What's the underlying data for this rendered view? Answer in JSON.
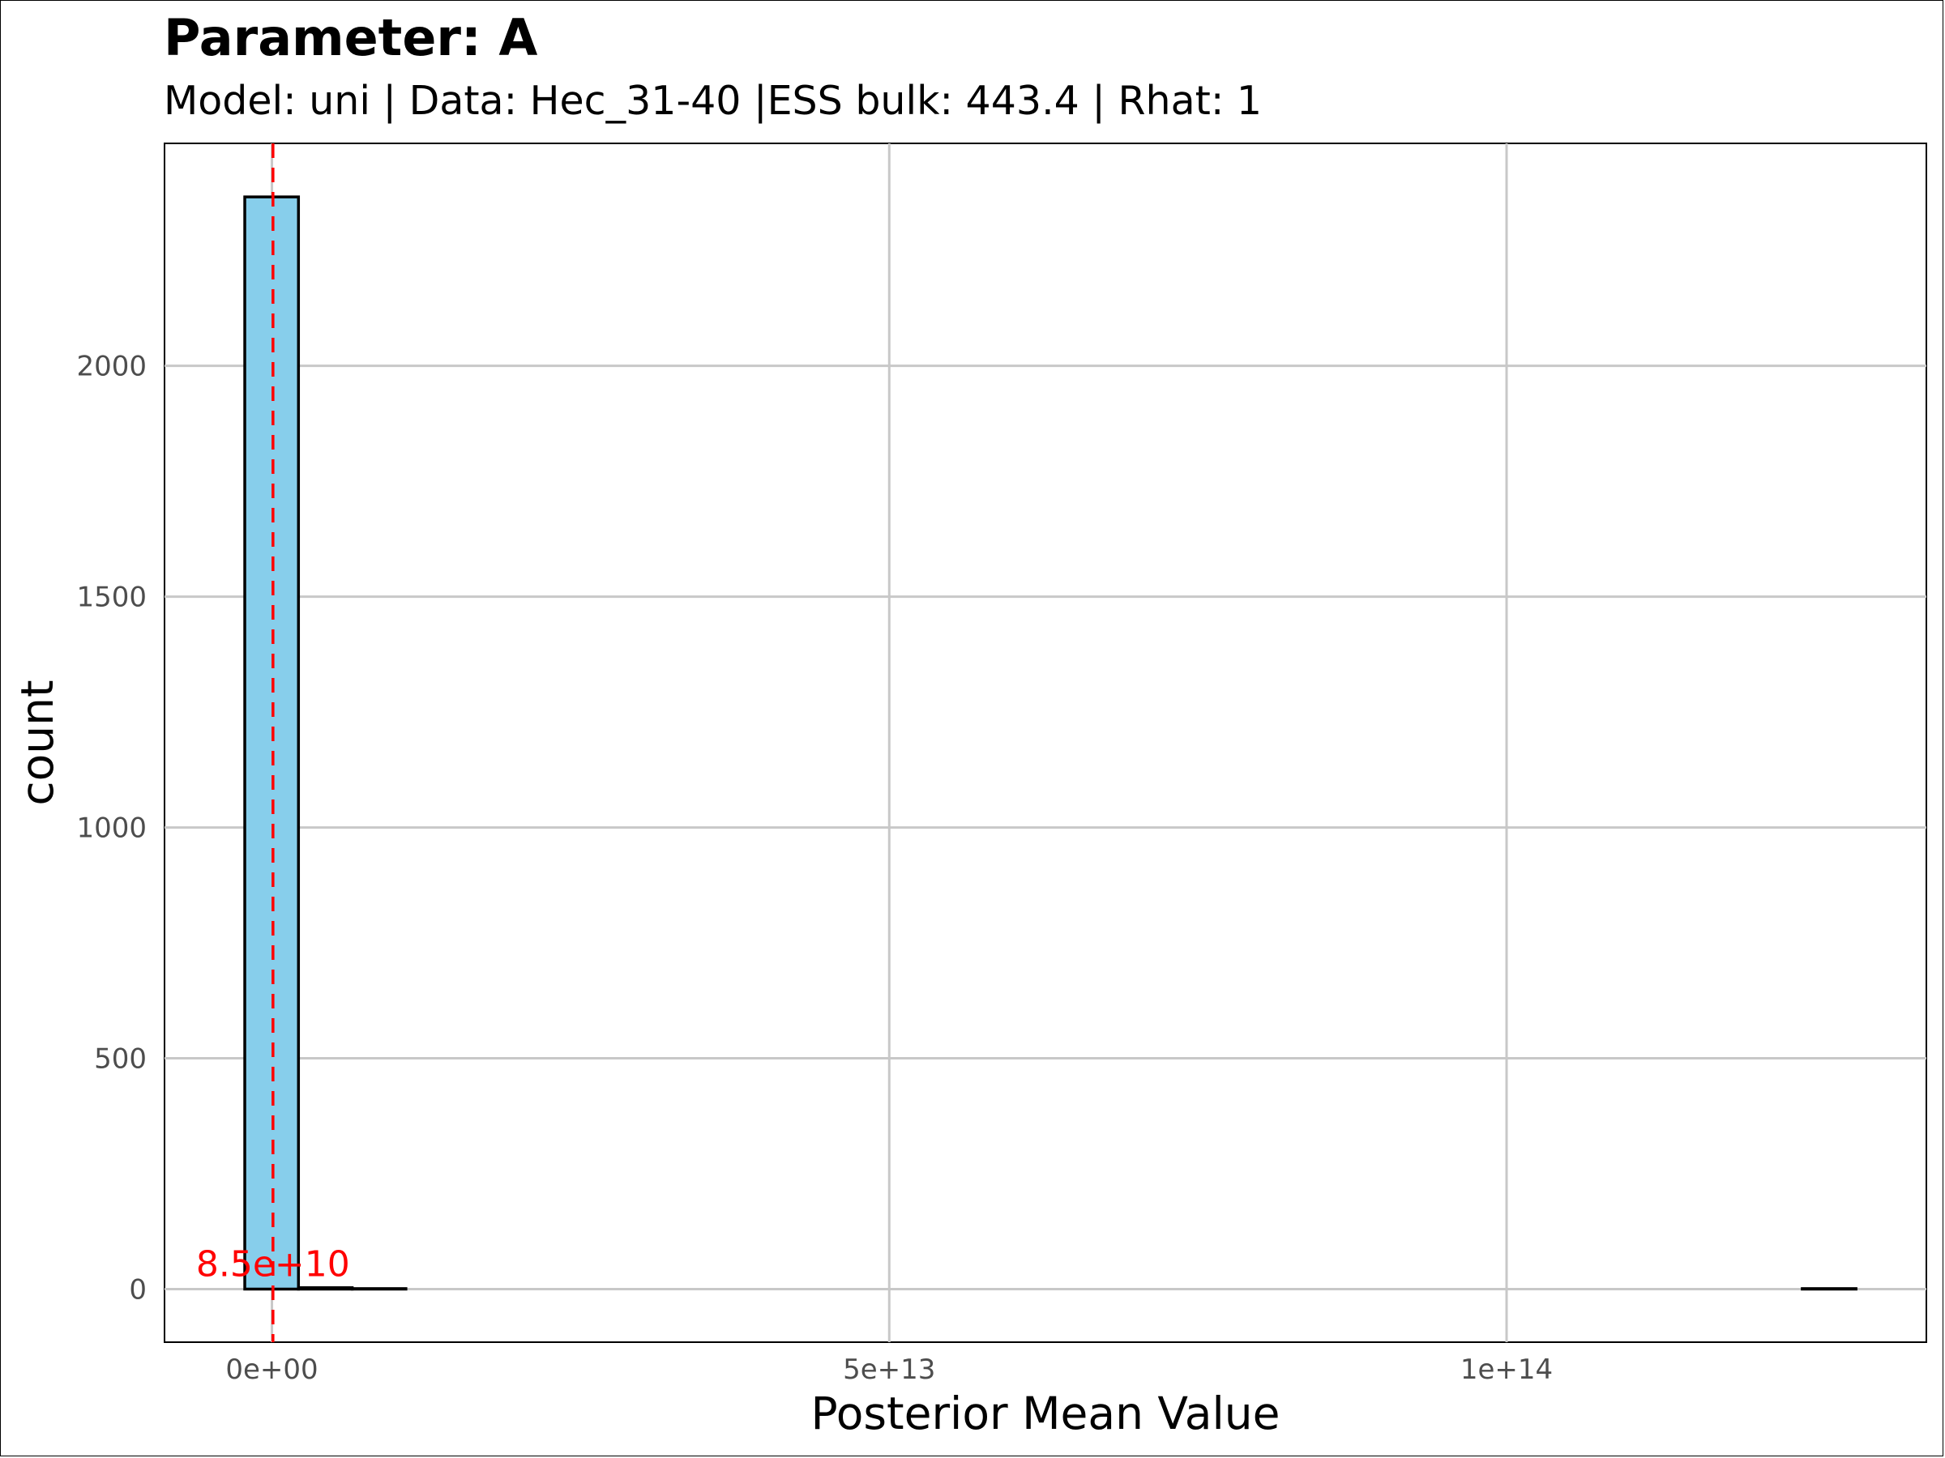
{
  "chart_data": {
    "type": "bar",
    "title": "Parameter: A",
    "subtitle": "Model: uni | Data: Hec_31-40 |ESS bulk: 443.4 | Rhat: 1",
    "xlabel": "Posterior Mean Value",
    "ylabel": "count",
    "xlim": [
      -8700000000000.0,
      134000000000000.0
    ],
    "ylim": [
      -115,
      2482
    ],
    "x_ticks": [
      {
        "value": 0,
        "label": "0e+00"
      },
      {
        "value": 50000000000000.0,
        "label": "5e+13"
      },
      {
        "value": 100000000000000.0,
        "label": "1e+14"
      }
    ],
    "y_ticks": [
      {
        "value": 0,
        "label": "0"
      },
      {
        "value": 500,
        "label": "500"
      },
      {
        "value": 1000,
        "label": "1000"
      },
      {
        "value": 1500,
        "label": "1500"
      },
      {
        "value": 2000,
        "label": "2000"
      }
    ],
    "bin_width": 4350000000000.0,
    "bins": [
      {
        "x0": -2200000000000.0,
        "count": 2366
      },
      {
        "x0": 2150000000000.0,
        "count": 3
      },
      {
        "x0": 6500000000000.0,
        "count": 1
      },
      {
        "x0": 10850000000000.0,
        "count": 0
      },
      {
        "x0": 15200000000000.0,
        "count": 0
      },
      {
        "x0": 19550000000000.0,
        "count": 0
      },
      {
        "x0": 23900000000000.0,
        "count": 0
      },
      {
        "x0": 28250000000000.0,
        "count": 0
      },
      {
        "x0": 32600000000000.0,
        "count": 0
      },
      {
        "x0": 36950000000000.0,
        "count": 0
      },
      {
        "x0": 41300000000000.0,
        "count": 0
      },
      {
        "x0": 45650000000000.0,
        "count": 0
      },
      {
        "x0": 50000000000000.0,
        "count": 0
      },
      {
        "x0": 54350000000000.0,
        "count": 0
      },
      {
        "x0": 58700000000000.0,
        "count": 0
      },
      {
        "x0": 63050000000000.0,
        "count": 0
      },
      {
        "x0": 67400000000000.0,
        "count": 0
      },
      {
        "x0": 71750000000000.0,
        "count": 0
      },
      {
        "x0": 76100000000000.0,
        "count": 0
      },
      {
        "x0": 80450000000000.0,
        "count": 0
      },
      {
        "x0": 84800000000000.0,
        "count": 0
      },
      {
        "x0": 89150000000000.0,
        "count": 0
      },
      {
        "x0": 93500000000000.0,
        "count": 0
      },
      {
        "x0": 97850000000000.0,
        "count": 0
      },
      {
        "x0": 102200000000000.0,
        "count": 0
      },
      {
        "x0": 106550000000000.0,
        "count": 0
      },
      {
        "x0": 110900000000000.0,
        "count": 0
      },
      {
        "x0": 115250000000000.0,
        "count": 0
      },
      {
        "x0": 119600000000000.0,
        "count": 0
      },
      {
        "x0": 123950000000000.0,
        "count": 1
      }
    ],
    "mean_line": {
      "value": 85000000000.0,
      "label": "8.5e+10",
      "color": "#ff0000",
      "style": "dashed"
    },
    "bar_fill": "#87ceeb",
    "bar_stroke": "#000000",
    "grid": true,
    "legend": "none"
  }
}
